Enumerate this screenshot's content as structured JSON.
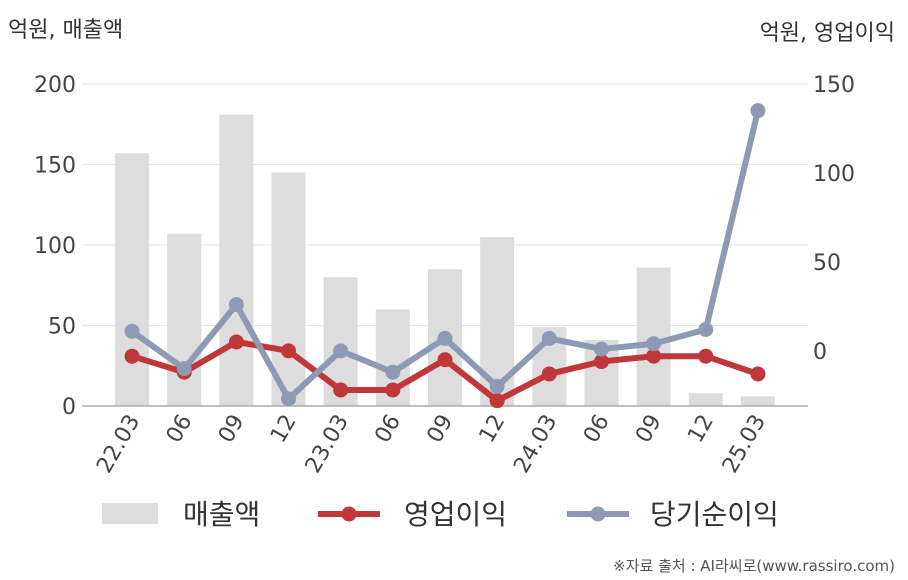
{
  "chart_data": {
    "type": "bar+line",
    "left_unit": "억원, 매출액",
    "right_unit": "억원, 영업이익",
    "categories": [
      "22.03",
      "06",
      "09",
      "12",
      "23.03",
      "06",
      "09",
      "12",
      "24.03",
      "06",
      "09",
      "12",
      "25.03"
    ],
    "left_axis": {
      "ylim": [
        0,
        200
      ],
      "ticks": [
        0,
        50,
        100,
        150,
        200
      ]
    },
    "right_axis": {
      "ylim": [
        -31,
        150
      ],
      "ticks": [
        0,
        50,
        100,
        150
      ]
    },
    "series": [
      {
        "name": "매출액",
        "kind": "bar",
        "axis": "left",
        "color": "#dddddd",
        "values": [
          157,
          107,
          181,
          145,
          80,
          60,
          85,
          105,
          49,
          41,
          86,
          8,
          6
        ]
      },
      {
        "name": "영업이익",
        "kind": "line",
        "axis": "right",
        "color": "#c0373a",
        "values": [
          -3,
          -12,
          5,
          0,
          -22,
          -22,
          -5,
          -28,
          -13,
          -6,
          -3,
          -3,
          -13
        ]
      },
      {
        "name": "당기순이익",
        "kind": "line",
        "axis": "right",
        "color": "#8e9ab3",
        "values": [
          11,
          -10,
          26,
          -27,
          0,
          -12,
          7,
          -20,
          7,
          1,
          4,
          12,
          135
        ]
      }
    ],
    "grid": true,
    "legend_position": "bottom"
  },
  "source": "※자료 출처 : AI라씨로(www.rassiro.com)"
}
